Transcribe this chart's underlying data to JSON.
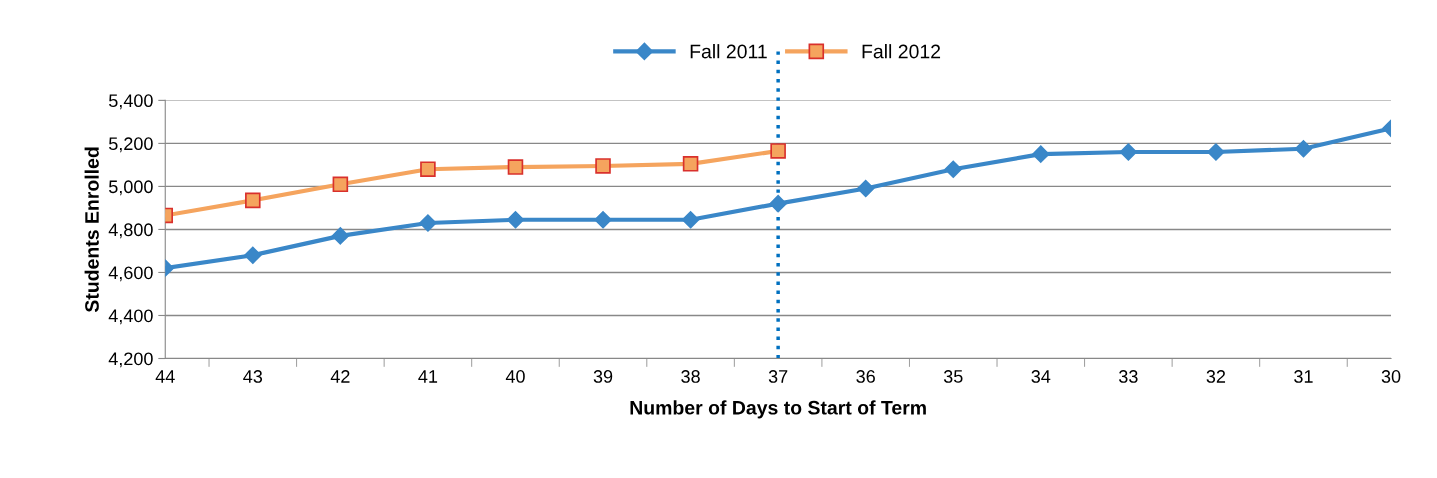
{
  "chart_data": {
    "type": "line",
    "xlabel": "Number of Days to Start of Term",
    "ylabel": "Students Enrolled",
    "categories": [
      "44",
      "43",
      "42",
      "41",
      "40",
      "39",
      "38",
      "37",
      "36",
      "35",
      "34",
      "33",
      "32",
      "31",
      "30"
    ],
    "series": [
      {
        "name": "Fall 2011",
        "color": "#3a87c8",
        "marker": "diamond",
        "values": [
          4620,
          4680,
          4770,
          4830,
          4845,
          4845,
          4845,
          4920,
          4990,
          5080,
          5150,
          5160,
          5160,
          5175,
          5270
        ]
      },
      {
        "name": "Fall 2012",
        "color": "#f5a45e",
        "marker": "square",
        "values": [
          4865,
          4935,
          5010,
          5080,
          5090,
          5095,
          5105,
          5165,
          null,
          null,
          null,
          null,
          null,
          null,
          null
        ]
      }
    ],
    "ylim": [
      4200,
      5400
    ],
    "yticks": [
      {
        "value": 4200,
        "label": "4,200"
      },
      {
        "value": 4400,
        "label": "4,400"
      },
      {
        "value": 4600,
        "label": "4,600"
      },
      {
        "value": 4800,
        "label": "4,800"
      },
      {
        "value": 5000,
        "label": "5,000"
      },
      {
        "value": 5200,
        "label": "5,200"
      },
      {
        "value": 5400,
        "label": "5,400"
      }
    ],
    "grid": "y",
    "legend": "top",
    "ref_lines": [
      {
        "axis": "x",
        "value": "37",
        "color": "#0070c0",
        "line_style": "dotted"
      }
    ]
  }
}
